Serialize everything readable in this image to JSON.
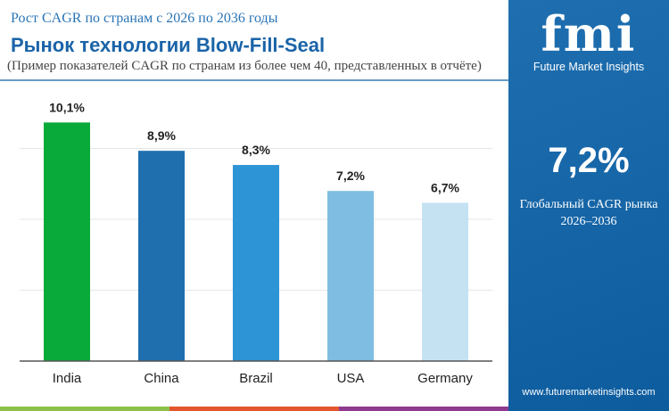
{
  "header": {
    "subtitle": "Рост CAGR по странам с 2026 по 2036 годы",
    "title": "Рынок технологии Blow-Fill-Seal",
    "note": "(Пример показателей CAGR по странам из более чем 40, представленных в отчёте)"
  },
  "panel": {
    "brand": "fmi",
    "brand_name": "Future Market Insights",
    "global_cagr": "7,2%",
    "global_label": "Глобальный CAGR рынка",
    "period": "2026–2036",
    "url": "www.futuremarketinsights.com"
  },
  "colors": {
    "panel": "#1566a8",
    "stripes": [
      "#8cc24a",
      "#e4572e",
      "#8e3a8e"
    ]
  },
  "chart_data": {
    "type": "bar",
    "categories": [
      "India",
      "China",
      "Brazil",
      "USA",
      "Germany"
    ],
    "values": [
      10.1,
      8.9,
      8.3,
      7.2,
      6.7
    ],
    "labels": [
      "10,1%",
      "8,9%",
      "8,3%",
      "7,2%",
      "6,7%"
    ],
    "colors": [
      "#0aaa3a",
      "#1f6fae",
      "#2d94d6",
      "#7fbde3",
      "#c5e2f3"
    ],
    "ylim": [
      0,
      12
    ],
    "grid": true,
    "title": "",
    "xlabel": "",
    "ylabel": ""
  }
}
